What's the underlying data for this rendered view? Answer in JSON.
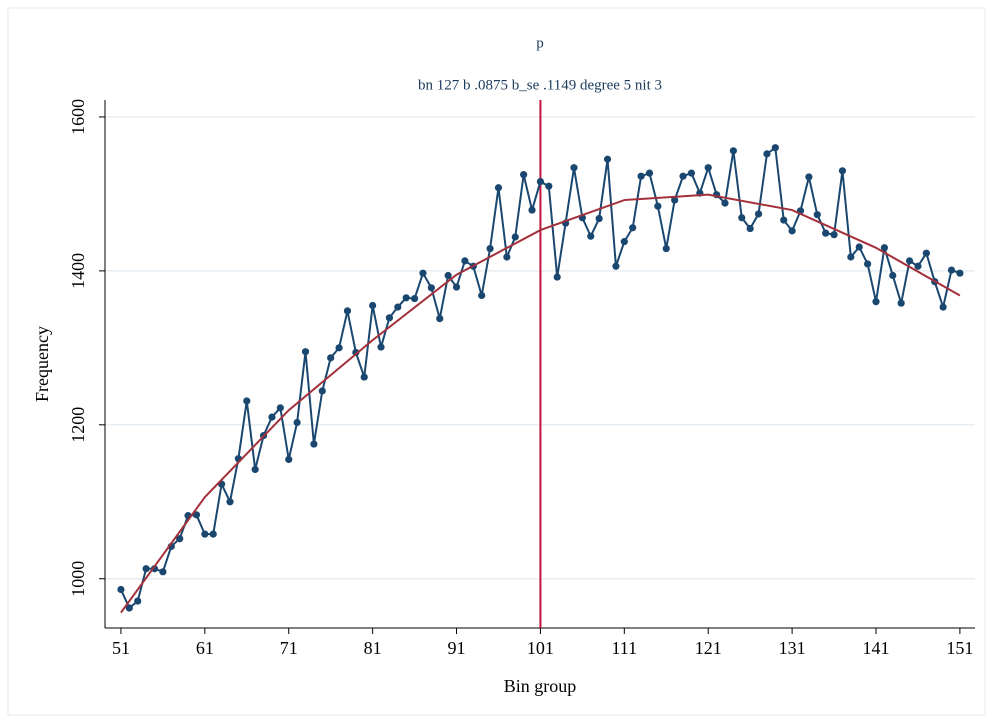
{
  "chart_data": {
    "type": "line",
    "title": "p",
    "subtitle": "bn 127 b .0875 b_se .1149 degree 5 nit 3",
    "x_label": "Bin group",
    "y_label": "Frequency",
    "x": [
      51,
      52,
      53,
      54,
      55,
      56,
      57,
      58,
      59,
      60,
      61,
      62,
      63,
      64,
      65,
      66,
      67,
      68,
      69,
      70,
      71,
      72,
      73,
      74,
      75,
      76,
      77,
      78,
      79,
      80,
      81,
      82,
      83,
      84,
      85,
      86,
      87,
      88,
      89,
      90,
      91,
      92,
      93,
      94,
      95,
      96,
      97,
      98,
      99,
      100,
      101,
      102,
      103,
      104,
      105,
      106,
      107,
      108,
      109,
      110,
      111,
      112,
      113,
      114,
      115,
      116,
      117,
      118,
      119,
      120,
      121,
      122,
      123,
      124,
      125,
      126,
      127,
      128,
      129,
      130,
      131,
      132,
      133,
      134,
      135,
      136,
      137,
      138,
      139,
      140,
      141,
      142,
      143,
      144,
      145,
      146,
      147,
      148,
      149,
      150,
      151
    ],
    "series": [
      {
        "color": "#1a476f",
        "values": [
          986,
          962,
          971,
          1013,
          1013,
          1009,
          1042,
          1052,
          1082,
          1083,
          1058,
          1058,
          1123,
          1100,
          1156,
          1231,
          1142,
          1186,
          1210,
          1222,
          1155,
          1203,
          1295,
          1175,
          1244,
          1287,
          1300,
          1348,
          1294,
          1262,
          1355,
          1301,
          1339,
          1353,
          1365,
          1364,
          1397,
          1378,
          1338,
          1394,
          1379,
          1413,
          1406,
          1368,
          1429,
          1508,
          1418,
          1444,
          1525,
          1479,
          1516,
          1510,
          1392,
          1462,
          1534,
          1469,
          1445,
          1468,
          1545,
          1406,
          1438,
          1456,
          1523,
          1527,
          1484,
          1429,
          1492,
          1523,
          1527,
          1501,
          1534,
          1499,
          1488,
          1556,
          1469,
          1455,
          1474,
          1552,
          1560,
          1466,
          1452,
          1478,
          1522,
          1473,
          1449,
          1447,
          1530,
          1418,
          1431,
          1409,
          1360,
          1430,
          1394,
          1358,
          1413,
          1406,
          1423,
          1386,
          1353,
          1401,
          1397
        ]
      }
    ],
    "fit": {
      "color": "#a3303a",
      "x": [
        51,
        61,
        71,
        81,
        91,
        101,
        111,
        121,
        131,
        141,
        151
      ],
      "values": [
        956,
        1106,
        1219,
        1310,
        1395,
        1453,
        1492,
        1499,
        1479,
        1430,
        1368
      ]
    },
    "xline": {
      "value": 101,
      "color": "#c0143c"
    },
    "xlim": [
      49.1,
      152.8
    ],
    "ylim": [
      936,
      1622
    ],
    "xticks": [
      51,
      61,
      71,
      81,
      91,
      101,
      111,
      121,
      131,
      141,
      151
    ],
    "yticks": [
      1000,
      1200,
      1400,
      1600
    ],
    "grid": true
  }
}
